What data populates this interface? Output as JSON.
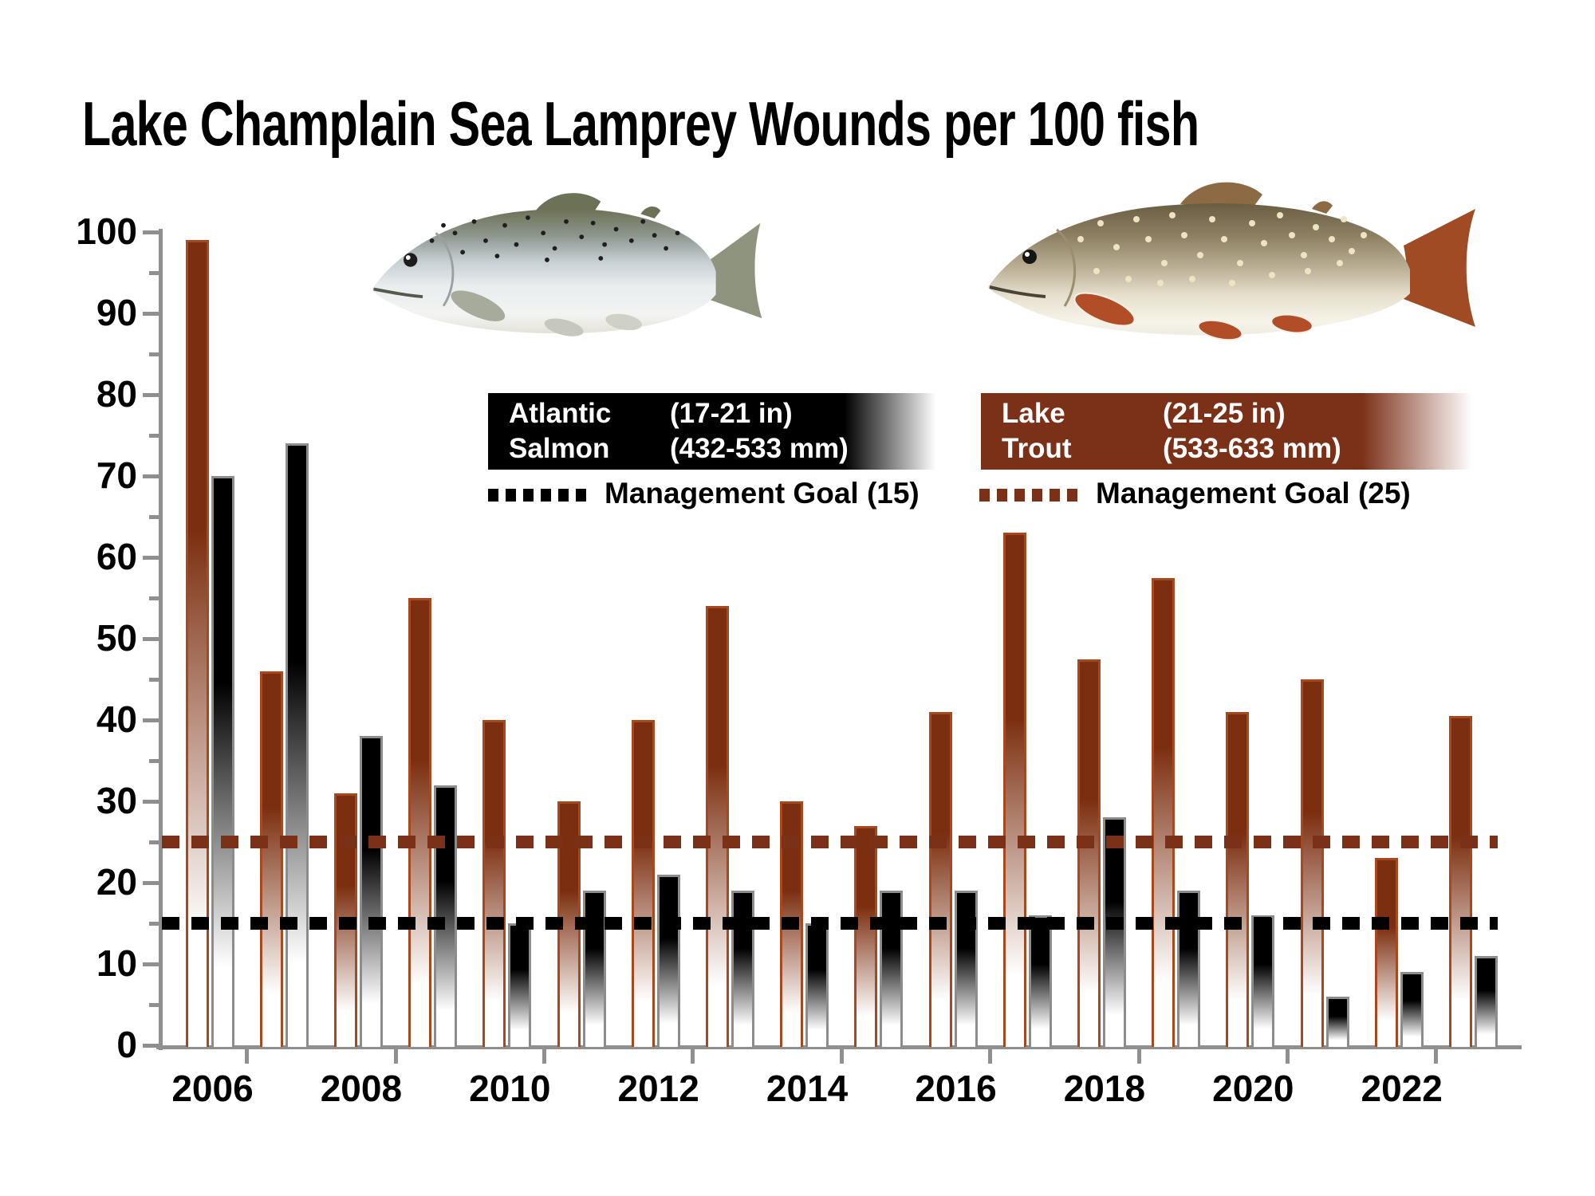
{
  "title": "Lake Champlain Sea Lamprey Wounds per 100 fish",
  "legend": {
    "salmon": {
      "name_line1": "Atlantic",
      "name_line2": "Salmon",
      "size_in": "(17-21 in)",
      "size_mm": "(432-533 mm)",
      "goal_label": "Management Goal (15)",
      "box_color": "#000000"
    },
    "trout": {
      "name_line1": "Lake",
      "name_line2": "Trout",
      "size_in": "(21-25 in)",
      "size_mm": "(533-633 mm)",
      "goal_label": "Management Goal (25)",
      "box_color": "#7b3018"
    }
  },
  "chart_data": {
    "type": "bar",
    "title": "Lake Champlain Sea Lamprey Wounds per 100 fish",
    "categories": [
      2006,
      2007,
      2008,
      2009,
      2010,
      2011,
      2012,
      2013,
      2014,
      2015,
      2016,
      2017,
      2018,
      2019,
      2020,
      2021,
      2022,
      2023
    ],
    "series": [
      {
        "name": "Lake Trout",
        "color": "#7c2f10",
        "outline_color": "#a8481e",
        "values": [
          99,
          46,
          31,
          55,
          40,
          30,
          40,
          54,
          30,
          27,
          41,
          63,
          47.5,
          57.5,
          41,
          45,
          23,
          40.5
        ]
      },
      {
        "name": "Atlantic Salmon",
        "color": "#000000",
        "outline_color": "#8c8c8c",
        "values": [
          70,
          74,
          38,
          32,
          15,
          19,
          21,
          19,
          15,
          19,
          19,
          16,
          28,
          19,
          16,
          6,
          9,
          11
        ]
      }
    ],
    "goal_lines": [
      {
        "label": "Management Goal (15)",
        "value": 15,
        "color": "#000000",
        "series": "Atlantic Salmon"
      },
      {
        "label": "Management Goal (25)",
        "value": 25,
        "color": "#7b3018",
        "series": "Lake Trout"
      }
    ],
    "ylim": [
      0,
      100
    ],
    "y_major_step": 10,
    "y_minor_step": 5,
    "y_tick_labels": [
      "0",
      "10",
      "20",
      "30",
      "40",
      "50",
      "60",
      "70",
      "80",
      "90",
      "100"
    ],
    "x_tick_labels": [
      "2006",
      "2008",
      "2010",
      "2012",
      "2014",
      "2016",
      "2018",
      "2020",
      "2022"
    ],
    "grid": false,
    "bar_style": "gradient fades from series color at top to white at bottom",
    "legend_position": "top-center"
  }
}
